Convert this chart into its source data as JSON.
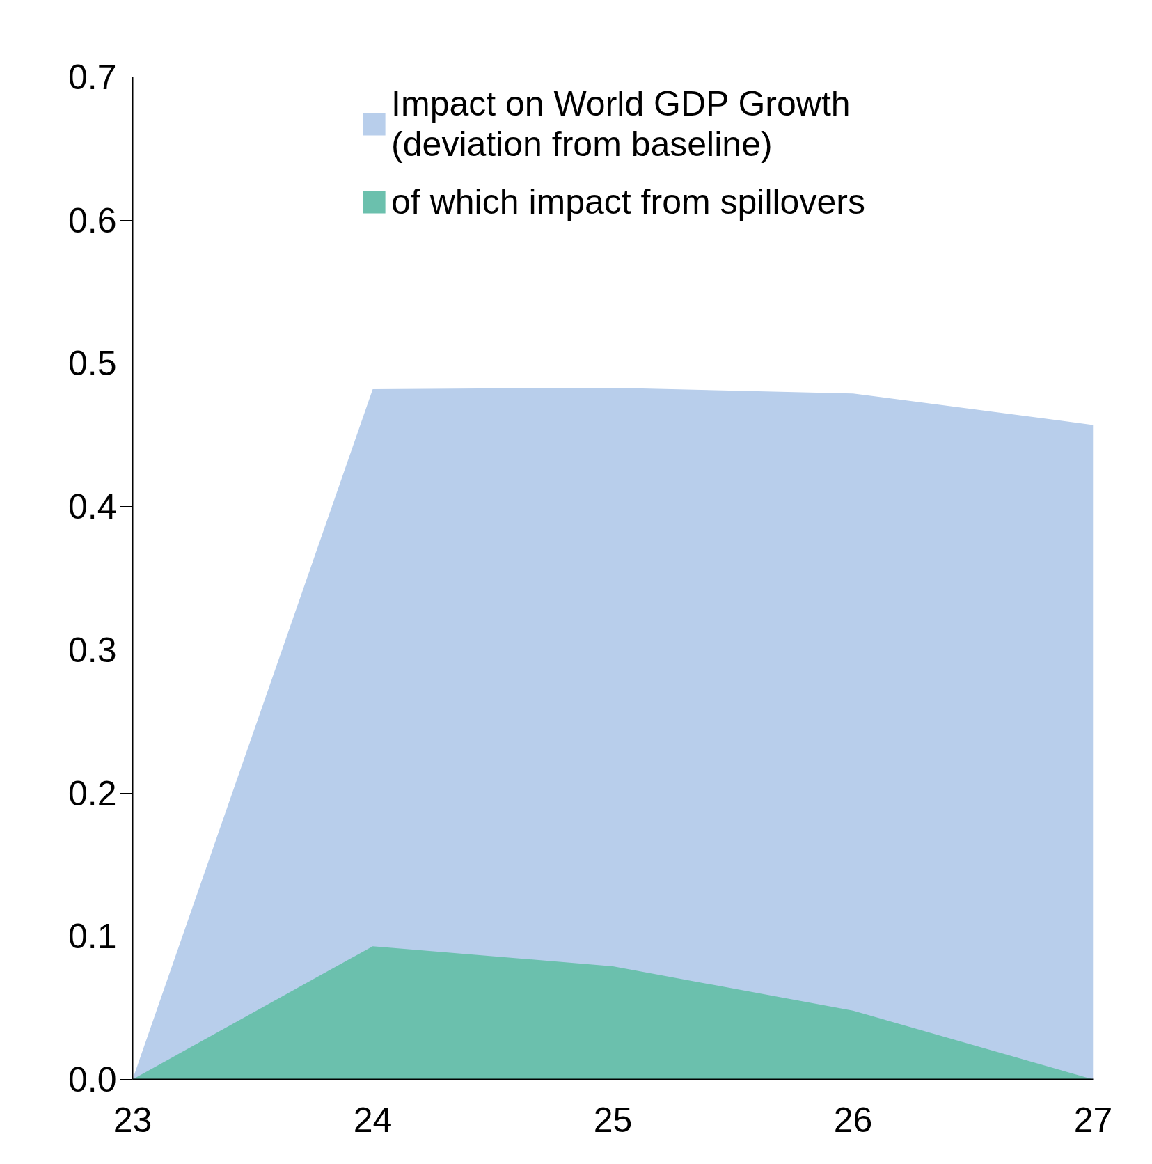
{
  "chart_data": {
    "type": "area",
    "x": [
      23,
      24,
      25,
      26,
      27
    ],
    "series": [
      {
        "name": "Impact on World GDP Growth\n(deviation from baseline)",
        "color": "#b8ceeb",
        "values": [
          0,
          0.482,
          0.483,
          0.479,
          0.457
        ]
      },
      {
        "name": "of which impact from spillovers",
        "color": "#6bc0ad",
        "values": [
          0,
          0.093,
          0.079,
          0.048,
          0
        ]
      }
    ],
    "xlim": [
      23,
      27
    ],
    "xticks": [
      23,
      24,
      25,
      26,
      27
    ],
    "ylim": [
      0,
      0.7
    ],
    "yticks": [
      {
        "value": 0,
        "label": "0.0"
      },
      {
        "value": 0.1,
        "label": "0.1"
      },
      {
        "value": 0.2,
        "label": "0.2"
      },
      {
        "value": 0.3,
        "label": "0.3"
      },
      {
        "value": 0.4,
        "label": "0.4"
      },
      {
        "value": 0.5,
        "label": "0.5"
      },
      {
        "value": 0.6,
        "label": "0.6"
      },
      {
        "value": 0.7,
        "label": "0.7"
      }
    ],
    "grid": false,
    "legend": "top"
  }
}
